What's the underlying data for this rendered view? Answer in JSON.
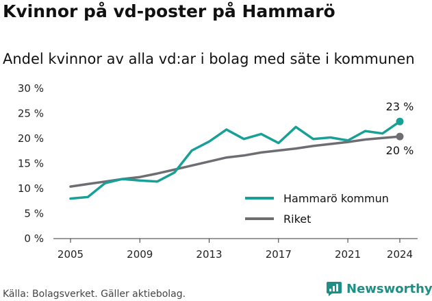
{
  "title": "Kvinnor på vd-poster på Hammarö",
  "subtitle": "Andel kvinnor av alla vd:ar i bolag med säte i kommunen",
  "source": "Källa: Bolagsverket. Gäller aktiebolag.",
  "brand": {
    "name": "Newsworthy",
    "icon": "newsworthy-logo-icon",
    "color": "#1f8f86"
  },
  "chart_data": {
    "type": "line",
    "x": [
      2005,
      2006,
      2007,
      2008,
      2009,
      2010,
      2011,
      2012,
      2013,
      2014,
      2015,
      2016,
      2017,
      2018,
      2019,
      2020,
      2021,
      2022,
      2023,
      2024
    ],
    "series": [
      {
        "name": "Hammarö kommun",
        "color": "#18a096",
        "values": [
          8.0,
          8.3,
          11.1,
          11.9,
          11.6,
          11.4,
          13.2,
          17.6,
          19.4,
          21.8,
          19.9,
          20.9,
          19.1,
          22.3,
          19.9,
          20.2,
          19.6,
          21.5,
          21.0,
          23.4
        ]
      },
      {
        "name": "Riket",
        "color": "#6e6e72",
        "values": [
          10.4,
          10.9,
          11.4,
          11.9,
          12.3,
          13.0,
          13.8,
          14.6,
          15.4,
          16.2,
          16.6,
          17.2,
          17.6,
          18.0,
          18.5,
          18.9,
          19.3,
          19.8,
          20.1,
          20.4
        ]
      }
    ],
    "end_labels": [
      "23 %",
      "20 %"
    ],
    "ylim": [
      0,
      30
    ],
    "y_ticks": [
      0,
      5,
      10,
      15,
      20,
      25,
      30
    ],
    "y_tick_labels": [
      "0 %",
      "5 %",
      "10 %",
      "15 %",
      "20 %",
      "25 %",
      "30 %"
    ],
    "x_ticks": [
      2005,
      2009,
      2013,
      2017,
      2021,
      2024
    ],
    "x_tick_labels": [
      "2005",
      "2009",
      "2013",
      "2017",
      "2021",
      "2024"
    ],
    "xlabel": "",
    "ylabel": "",
    "grid": false,
    "legend_position": "bottom-right"
  }
}
